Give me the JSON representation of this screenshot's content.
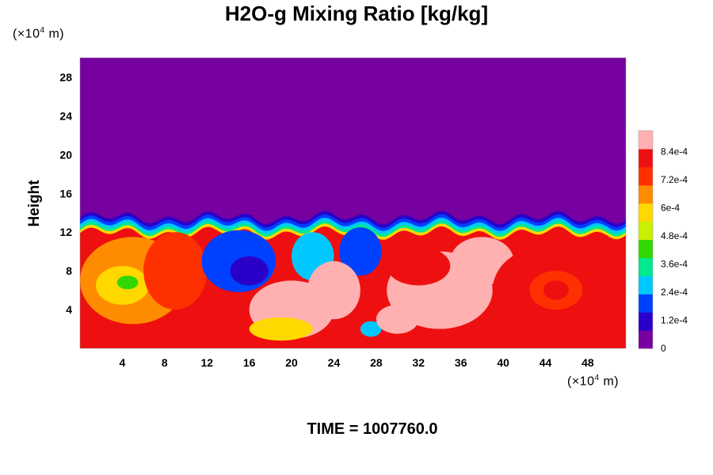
{
  "chart_data": {
    "type": "heatmap",
    "title": "H2O-g Mixing Ratio [kg/kg]",
    "ylabel": "Height",
    "x_unit": {
      "prefix": "(×10",
      "exp": "4",
      "suffix": " m)"
    },
    "y_unit": {
      "prefix": "(×10",
      "exp": "4",
      "suffix": " m)"
    },
    "xlim": [
      0,
      51.6
    ],
    "ylim": [
      0,
      30
    ],
    "x_ticks": [
      "4",
      "8",
      "12",
      "16",
      "20",
      "24",
      "28",
      "32",
      "36",
      "40",
      "44",
      "48"
    ],
    "y_ticks": [
      "4",
      "8",
      "12",
      "16",
      "20",
      "24",
      "28"
    ],
    "colorbar": {
      "range": [
        0,
        0.00093
      ],
      "tick_labels": [
        "0",
        "1.2e-4",
        "2.4e-4",
        "3.6e-4",
        "4.8e-4",
        "6e-4",
        "7.2e-4",
        "8.4e-4"
      ],
      "tick_values": [
        0,
        0.00012,
        0.00024,
        0.00036,
        0.00048,
        0.0006,
        0.00072,
        0.00084
      ],
      "colors": [
        "#7700a0",
        "#2a00c8",
        "#0040ff",
        "#00c8ff",
        "#00e890",
        "#30d800",
        "#c8f000",
        "#ffd800",
        "#ff8c00",
        "#ff3000",
        "#ee1010",
        "#ffb0b0"
      ]
    },
    "description_values": {
      "dry_layer_value": 0,
      "moist_top_height": 13.5,
      "dominant_lower_value_range": [
        0.0007,
        0.00093
      ]
    },
    "time_label": "TIME = 1007760.0"
  }
}
